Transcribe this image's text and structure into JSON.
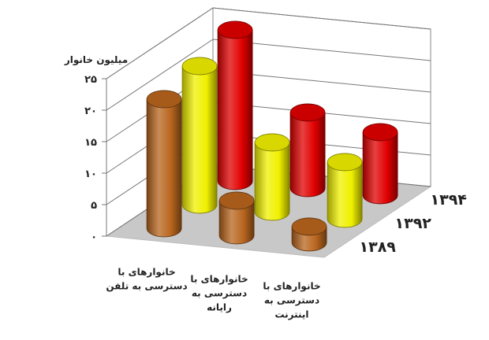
{
  "chart_data": {
    "type": "bar",
    "style": "3d-cylinder",
    "ylabel": "میلیون خانوار",
    "ylim": [
      0,
      25
    ],
    "yticks": [
      "۰",
      "۵",
      "۱۰",
      "۱۵",
      "۲۰",
      "۲۵"
    ],
    "grid": true,
    "categories": [
      [
        "خانوارهای با",
        "دسترسی به تلفن"
      ],
      [
        "خانوارهای با",
        "دسترسی به",
        "رایانه"
      ],
      [
        "خانوارهای با",
        "دسترسی به",
        "اینترنت"
      ]
    ],
    "series": [
      {
        "name": "۱۳۸۹",
        "color": "#b8651e",
        "values": [
          20.5,
          5.5,
          2.5
        ]
      },
      {
        "name": "۱۳۹۲",
        "color": "#f0f000",
        "values": [
          22,
          11,
          9
        ]
      },
      {
        "name": "۱۳۹۴",
        "color": "#e00000",
        "values": [
          24,
          12,
          10
        ]
      }
    ]
  }
}
